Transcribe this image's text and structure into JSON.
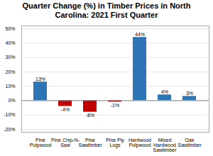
{
  "chart_data": {
    "type": "bar",
    "title": "Quarter Change (%) in Timber Prices in North\nCarolina: 2021 First Quarter",
    "categories": [
      "Pine\nPulpwood",
      "Pine Chip-N-\nSaw",
      "Pine\nSawtimber",
      "Pine Ply\nLogs",
      "Hardwood\nPulpwood",
      "Mixed\nHardwood\nSawtimber",
      "Oak\nSawtimber"
    ],
    "values": [
      13,
      -4,
      -8,
      -1,
      44,
      4,
      3
    ],
    "value_labels": [
      "13%",
      "-4%",
      "-8%",
      "-1%",
      "44%",
      "4%",
      "3%"
    ],
    "data_labels": true,
    "colors": [
      "#2E75B6",
      "#C00000",
      "#C00000",
      "#C00000",
      "#2E75B6",
      "#2E75B6",
      "#2E75B6"
    ],
    "ylim": [
      -22,
      52
    ],
    "yticks": [
      {
        "value": -20,
        "label": "-20%"
      },
      {
        "value": -10,
        "label": "-10%"
      },
      {
        "value": 0,
        "label": "0%"
      },
      {
        "value": 10,
        "label": "10%"
      },
      {
        "value": 20,
        "label": "20%"
      },
      {
        "value": 30,
        "label": "30%"
      },
      {
        "value": 40,
        "label": "40%"
      },
      {
        "value": 50,
        "label": "50%"
      }
    ],
    "grid": true
  }
}
